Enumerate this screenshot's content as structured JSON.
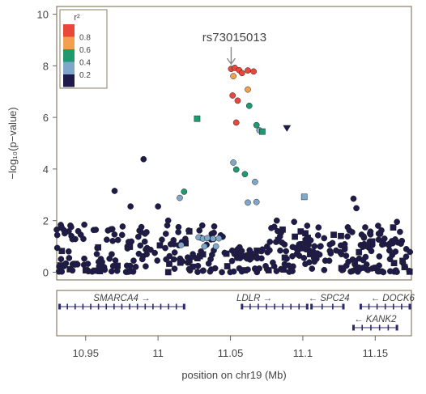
{
  "chart_data": {
    "type": "scatter",
    "title": "",
    "xlabel": "position on chr19 (Mb)",
    "ylabel": "−log₁₀(p−value)",
    "xlim": [
      10.93,
      11.175
    ],
    "ylim": [
      -0.3,
      10.3
    ],
    "x_ticks": [
      10.95,
      11,
      11.05,
      11.1,
      11.15
    ],
    "x_tick_labels": [
      "10.95",
      "11",
      "11.05",
      "11.1",
      "11.15"
    ],
    "y_ticks": [
      0,
      2,
      4,
      6,
      8,
      10
    ],
    "y_tick_labels": [
      "0",
      "2",
      "4",
      "6",
      "8",
      "10"
    ],
    "annotation": {
      "label": "rs73015013",
      "x": 11.0505,
      "y": 7.85
    },
    "legend": {
      "title": "r²",
      "position": "top-left",
      "bins": [
        {
          "label": "0.8",
          "color": "#e9473a"
        },
        {
          "label": "0.6",
          "color": "#f3a04e"
        },
        {
          "label": "0.4",
          "color": "#1e9a6e"
        },
        {
          "label": "0.2",
          "color": "#7fa7c9"
        },
        {
          "label": "",
          "color": "#1e1b4b"
        }
      ]
    },
    "colors": {
      "r2_0.8_1": "#e9473a",
      "r2_0.6_0.8": "#f3a04e",
      "r2_0.4_0.6": "#1e9a6e",
      "r2_0.2_0.4": "#7fa7c9",
      "r2_0_0.2": "#1e1b4b"
    },
    "highlight_points": [
      {
        "x": 11.0505,
        "y": 7.88,
        "r2": "r2_0.8_1"
      },
      {
        "x": 11.053,
        "y": 7.92,
        "r2": "r2_0.8_1"
      },
      {
        "x": 11.056,
        "y": 7.83,
        "r2": "r2_0.8_1"
      },
      {
        "x": 11.058,
        "y": 7.72,
        "r2": "r2_0.8_1"
      },
      {
        "x": 11.062,
        "y": 7.82,
        "r2": "r2_0.8_1"
      },
      {
        "x": 11.066,
        "y": 7.78,
        "r2": "r2_0.8_1"
      },
      {
        "x": 11.052,
        "y": 7.6,
        "r2": "r2_0.6_0.8"
      },
      {
        "x": 11.0515,
        "y": 6.85,
        "r2": "r2_0.8_1"
      },
      {
        "x": 11.055,
        "y": 6.65,
        "r2": "r2_0.8_1"
      },
      {
        "x": 11.062,
        "y": 7.08,
        "r2": "r2_0.6_0.8"
      },
      {
        "x": 11.054,
        "y": 5.8,
        "r2": "r2_0.8_1"
      },
      {
        "x": 11.063,
        "y": 6.45,
        "r2": "r2_0.4_0.6"
      },
      {
        "x": 11.068,
        "y": 5.7,
        "r2": "r2_0.4_0.6"
      },
      {
        "x": 11.07,
        "y": 5.5,
        "r2": "r2_0.2_0.4"
      },
      {
        "x": 11.072,
        "y": 5.45,
        "r2": "r2_0.4_0.6",
        "shape": "square"
      },
      {
        "x": 11.027,
        "y": 5.95,
        "r2": "r2_0.4_0.6",
        "shape": "square"
      },
      {
        "x": 11.089,
        "y": 5.58,
        "r2": "r2_0_0.2",
        "shape": "triangle"
      },
      {
        "x": 11.052,
        "y": 4.25,
        "r2": "r2_0.2_0.4"
      },
      {
        "x": 11.054,
        "y": 3.98,
        "r2": "r2_0.4_0.6"
      },
      {
        "x": 11.06,
        "y": 3.8,
        "r2": "r2_0.4_0.6"
      },
      {
        "x": 11.067,
        "y": 3.5,
        "r2": "r2_0.2_0.4"
      },
      {
        "x": 11.018,
        "y": 3.12,
        "r2": "r2_0.4_0.6"
      },
      {
        "x": 11.015,
        "y": 2.88,
        "r2": "r2_0.2_0.4"
      },
      {
        "x": 11.062,
        "y": 2.7,
        "r2": "r2_0.2_0.4"
      },
      {
        "x": 11.068,
        "y": 2.72,
        "r2": "r2_0.2_0.4"
      },
      {
        "x": 11.101,
        "y": 2.92,
        "r2": "r2_0.2_0.4",
        "shape": "square"
      },
      {
        "x": 11.028,
        "y": 1.35,
        "r2": "r2_0.2_0.4"
      },
      {
        "x": 11.031,
        "y": 1.3,
        "r2": "r2_0.2_0.4"
      },
      {
        "x": 11.034,
        "y": 1.32,
        "r2": "r2_0.2_0.4"
      },
      {
        "x": 11.038,
        "y": 1.3,
        "r2": "r2_0.2_0.4"
      },
      {
        "x": 11.042,
        "y": 1.31,
        "r2": "r2_0.2_0.4"
      },
      {
        "x": 11.016,
        "y": 1.05,
        "r2": "r2_0.2_0.4"
      },
      {
        "x": 11.032,
        "y": 1.0,
        "r2": "r2_0.2_0.4"
      },
      {
        "x": 11.04,
        "y": 1.0,
        "r2": "r2_0.2_0.4"
      }
    ],
    "notable_background": [
      {
        "x": 10.99,
        "y": 4.38
      },
      {
        "x": 10.97,
        "y": 3.15
      },
      {
        "x": 10.981,
        "y": 2.55
      },
      {
        "x": 11.0,
        "y": 2.55
      },
      {
        "x": 11.135,
        "y": 2.85
      },
      {
        "x": 11.137,
        "y": 2.48
      },
      {
        "x": 11.007,
        "y": 2.0
      },
      {
        "x": 11.082,
        "y": 2.0
      },
      {
        "x": 11.094,
        "y": 1.95
      },
      {
        "x": 11.165,
        "y": 1.95
      },
      {
        "x": 11.152,
        "y": 1.8
      },
      {
        "x": 10.94,
        "y": 1.75
      }
    ],
    "background_region": {
      "x_range": [
        10.93,
        11.175
      ],
      "y_range": [
        0,
        1.85
      ],
      "color_r2": "r2_0_0.2",
      "count_approx": 400
    },
    "genes": [
      {
        "name": "SMARCA4",
        "strand": "+",
        "start": 10.932,
        "end": 11.018,
        "row": 0,
        "label_x": 10.975
      },
      {
        "name": "LDLR",
        "strand": "+",
        "start": 11.058,
        "end": 11.103,
        "row": 0,
        "label_x": 11.0665
      },
      {
        "name": "SPC24",
        "strand": "-",
        "start": 11.106,
        "end": 11.128,
        "row": 0,
        "label_x": 11.118
      },
      {
        "name": "DOCK6",
        "strand": "-",
        "start": 11.14,
        "end": 11.175,
        "row": 0,
        "label_x": 11.162
      },
      {
        "name": "KANK2",
        "strand": "-",
        "start": 11.135,
        "end": 11.165,
        "row": 1,
        "label_x": 11.15
      }
    ]
  }
}
